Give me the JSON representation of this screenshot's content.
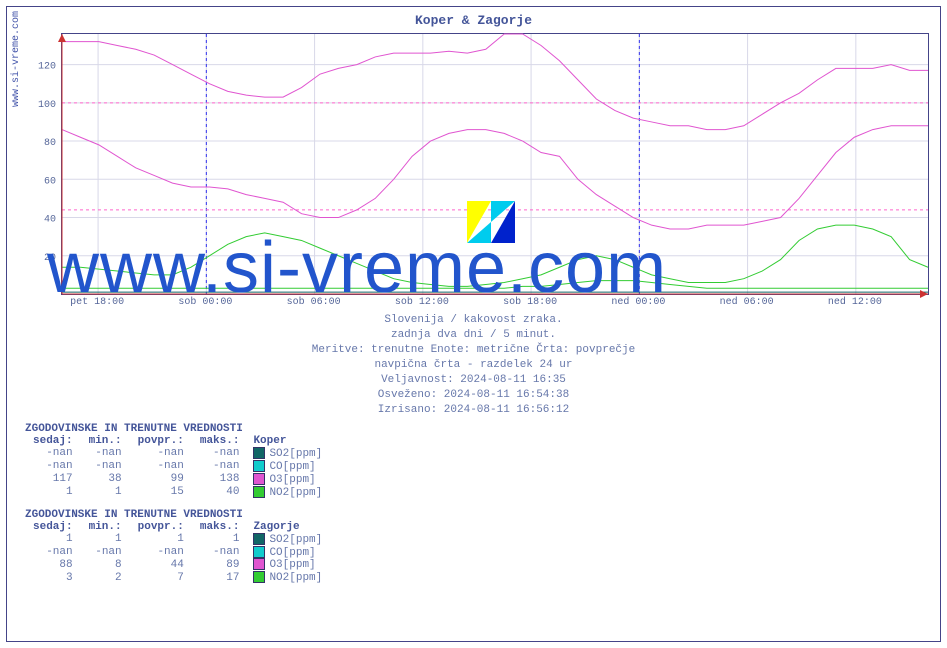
{
  "title": "Koper & Zagorje",
  "ylabel": "www.si-vreme.com",
  "watermark": "www.si-vreme.com",
  "chart": {
    "type": "line",
    "xlim": [
      0,
      48
    ],
    "ylim": [
      0,
      136
    ],
    "ytick_step": 20,
    "yticks": [
      20,
      40,
      60,
      80,
      100,
      120
    ],
    "xticks": [
      {
        "pos": 2,
        "label": "pet 18:00"
      },
      {
        "pos": 8,
        "label": "sob 00:00"
      },
      {
        "pos": 14,
        "label": "sob 06:00"
      },
      {
        "pos": 20,
        "label": "sob 12:00"
      },
      {
        "pos": 26,
        "label": "sob 18:00"
      },
      {
        "pos": 32,
        "label": "ned 00:00"
      },
      {
        "pos": 38,
        "label": "ned 06:00"
      },
      {
        "pos": 44,
        "label": "ned 12:00"
      }
    ],
    "vmarkers": [
      8,
      32
    ],
    "hmarkers": [
      {
        "y": 100,
        "color": "#ff66cc"
      },
      {
        "y": 44,
        "color": "#ff66cc"
      }
    ],
    "background_color": "#ffffff",
    "grid_color": "#d8d8e8",
    "axis_color": "#444488",
    "series": [
      {
        "name": "Koper O3",
        "color": "#e055d0",
        "width": 1,
        "y": [
          132,
          132,
          132,
          130,
          128,
          125,
          120,
          115,
          110,
          106,
          104,
          103,
          103,
          108,
          115,
          118,
          120,
          124,
          126,
          126,
          126,
          127,
          126,
          128,
          136,
          136,
          130,
          122,
          112,
          102,
          96,
          92,
          90,
          88,
          88,
          86,
          86,
          88,
          94,
          100,
          105,
          112,
          118,
          118,
          118,
          120,
          117,
          117
        ]
      },
      {
        "name": "Zagorje O3",
        "color": "#e055d0",
        "width": 1,
        "y": [
          86,
          82,
          78,
          72,
          66,
          62,
          58,
          56,
          56,
          55,
          52,
          50,
          48,
          42,
          40,
          40,
          44,
          50,
          60,
          72,
          80,
          84,
          86,
          86,
          84,
          80,
          74,
          72,
          60,
          52,
          46,
          40,
          36,
          34,
          34,
          36,
          36,
          36,
          38,
          40,
          50,
          62,
          74,
          82,
          86,
          88,
          88,
          88
        ]
      },
      {
        "name": "Koper NO2",
        "color": "#33cc33",
        "width": 1,
        "y": [
          14,
          14,
          13,
          12,
          11,
          10,
          10,
          14,
          20,
          26,
          30,
          32,
          30,
          28,
          24,
          20,
          16,
          12,
          8,
          6,
          5,
          4,
          4,
          5,
          6,
          8,
          10,
          14,
          18,
          20,
          18,
          14,
          10,
          8,
          6,
          6,
          6,
          8,
          12,
          18,
          28,
          34,
          36,
          36,
          34,
          30,
          18,
          14
        ]
      },
      {
        "name": "Zagorje NO2",
        "color": "#33cc33",
        "width": 1,
        "y": [
          3,
          3,
          3,
          3,
          3,
          3,
          3,
          3,
          3,
          3,
          3,
          3,
          3,
          3,
          3,
          3,
          3,
          3,
          3,
          3,
          3,
          3,
          3,
          3,
          3,
          4,
          4,
          5,
          6,
          7,
          7,
          7,
          6,
          5,
          4,
          3,
          3,
          3,
          3,
          3,
          3,
          3,
          3,
          3,
          3,
          3,
          3,
          3
        ]
      },
      {
        "name": "SO2/CO",
        "color": "#116666",
        "width": 1,
        "y": [
          1,
          1,
          1,
          1,
          1,
          1,
          1,
          1,
          1,
          1,
          1,
          1,
          1,
          1,
          1,
          1,
          1,
          1,
          1,
          1,
          1,
          1,
          1,
          1,
          1,
          1,
          1,
          1,
          1,
          1,
          1,
          1,
          1,
          1,
          1,
          1,
          1,
          1,
          1,
          1,
          1,
          1,
          1,
          1,
          1,
          1,
          1,
          1
        ]
      }
    ]
  },
  "meta": {
    "line1": "Slovenija / kakovost zraka.",
    "line2": "zadnja dva dni / 5 minut.",
    "line3": "Meritve: trenutne  Enote: metrične  Črta: povprečje",
    "line4": "navpična črta - razdelek 24 ur",
    "line5": "Veljavnost: 2024-08-11 16:35",
    "line6": "Osveženo: 2024-08-11 16:54:38",
    "line7": "Izrisano: 2024-08-11 16:56:12"
  },
  "tables": {
    "header_title": "ZGODOVINSKE IN TRENUTNE VREDNOSTI",
    "cols": {
      "c0": "sedaj:",
      "c1": "min.:",
      "c2": "povpr.:",
      "c3": "maks.:"
    },
    "groups": [
      {
        "name": "Koper",
        "rows": [
          {
            "sedaj": "-nan",
            "min": "-nan",
            "povpr": "-nan",
            "maks": "-nan",
            "swatch": "#116666",
            "label": "SO2[ppm]"
          },
          {
            "sedaj": "-nan",
            "min": "-nan",
            "povpr": "-nan",
            "maks": "-nan",
            "swatch": "#11cccc",
            "label": "CO[ppm]"
          },
          {
            "sedaj": "117",
            "min": "38",
            "povpr": "99",
            "maks": "138",
            "swatch": "#e055d0",
            "label": "O3[ppm]"
          },
          {
            "sedaj": "1",
            "min": "1",
            "povpr": "15",
            "maks": "40",
            "swatch": "#33cc33",
            "label": "NO2[ppm]"
          }
        ]
      },
      {
        "name": "Zagorje",
        "rows": [
          {
            "sedaj": "1",
            "min": "1",
            "povpr": "1",
            "maks": "1",
            "swatch": "#116666",
            "label": "SO2[ppm]"
          },
          {
            "sedaj": "-nan",
            "min": "-nan",
            "povpr": "-nan",
            "maks": "-nan",
            "swatch": "#11cccc",
            "label": "CO[ppm]"
          },
          {
            "sedaj": "88",
            "min": "8",
            "povpr": "44",
            "maks": "89",
            "swatch": "#e055d0",
            "label": "O3[ppm]"
          },
          {
            "sedaj": "3",
            "min": "2",
            "povpr": "7",
            "maks": "17",
            "swatch": "#33cc33",
            "label": "NO2[ppm]"
          }
        ]
      }
    ]
  },
  "logo_colors": {
    "a": "#ffff00",
    "b": "#00ccee",
    "c": "#0022cc"
  }
}
